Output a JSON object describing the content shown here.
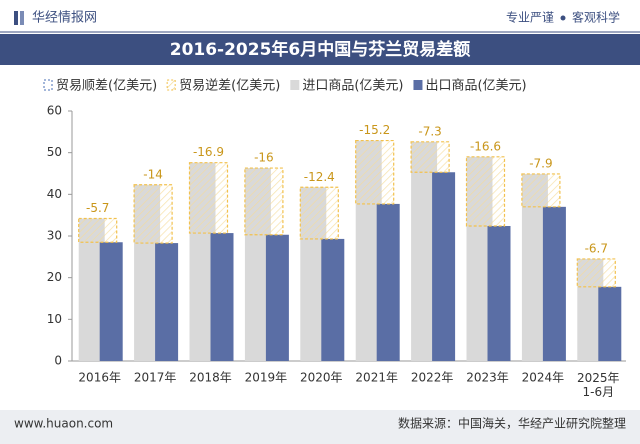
{
  "header": {
    "brand": "华经情报网",
    "slogan_left": "专业严谨",
    "slogan_right": "客观科学"
  },
  "chart_data": {
    "type": "bar",
    "title": "2016-2025年6月中国与芬兰贸易差额",
    "categories": [
      "2016年",
      "2017年",
      "2018年",
      "2019年",
      "2020年",
      "2021年",
      "2022年",
      "2023年",
      "2024年",
      "2025年\n1-6月"
    ],
    "series": [
      {
        "name": "贸易顺差(亿美元)",
        "color": "#4a6fb5",
        "values": [
          null,
          null,
          null,
          null,
          null,
          null,
          null,
          null,
          null,
          null
        ]
      },
      {
        "name": "贸易逆差(亿美元)",
        "color": "#f2c14e",
        "values": [
          -5.7,
          -14,
          -16.9,
          -16,
          -12.4,
          -15.2,
          -7.3,
          -16.6,
          -7.9,
          -6.7
        ]
      },
      {
        "name": "进口商品(亿美元)",
        "color": "#d9d9d9",
        "values": [
          34.2,
          42.3,
          47.6,
          46.3,
          41.7,
          52.9,
          52.6,
          49.0,
          44.9,
          24.5
        ]
      },
      {
        "name": "出口商品(亿美元)",
        "color": "#5a6ea5",
        "values": [
          28.5,
          28.3,
          30.7,
          30.3,
          29.3,
          37.7,
          45.3,
          32.4,
          37.0,
          17.8
        ]
      }
    ],
    "ylim": [
      0,
      60
    ],
    "yticks": [
      0,
      10,
      20,
      30,
      40,
      50,
      60
    ],
    "grid": false
  },
  "footer": {
    "website": "www.huaon.com",
    "source": "数据来源：中国海关，华经产业研究院整理"
  }
}
